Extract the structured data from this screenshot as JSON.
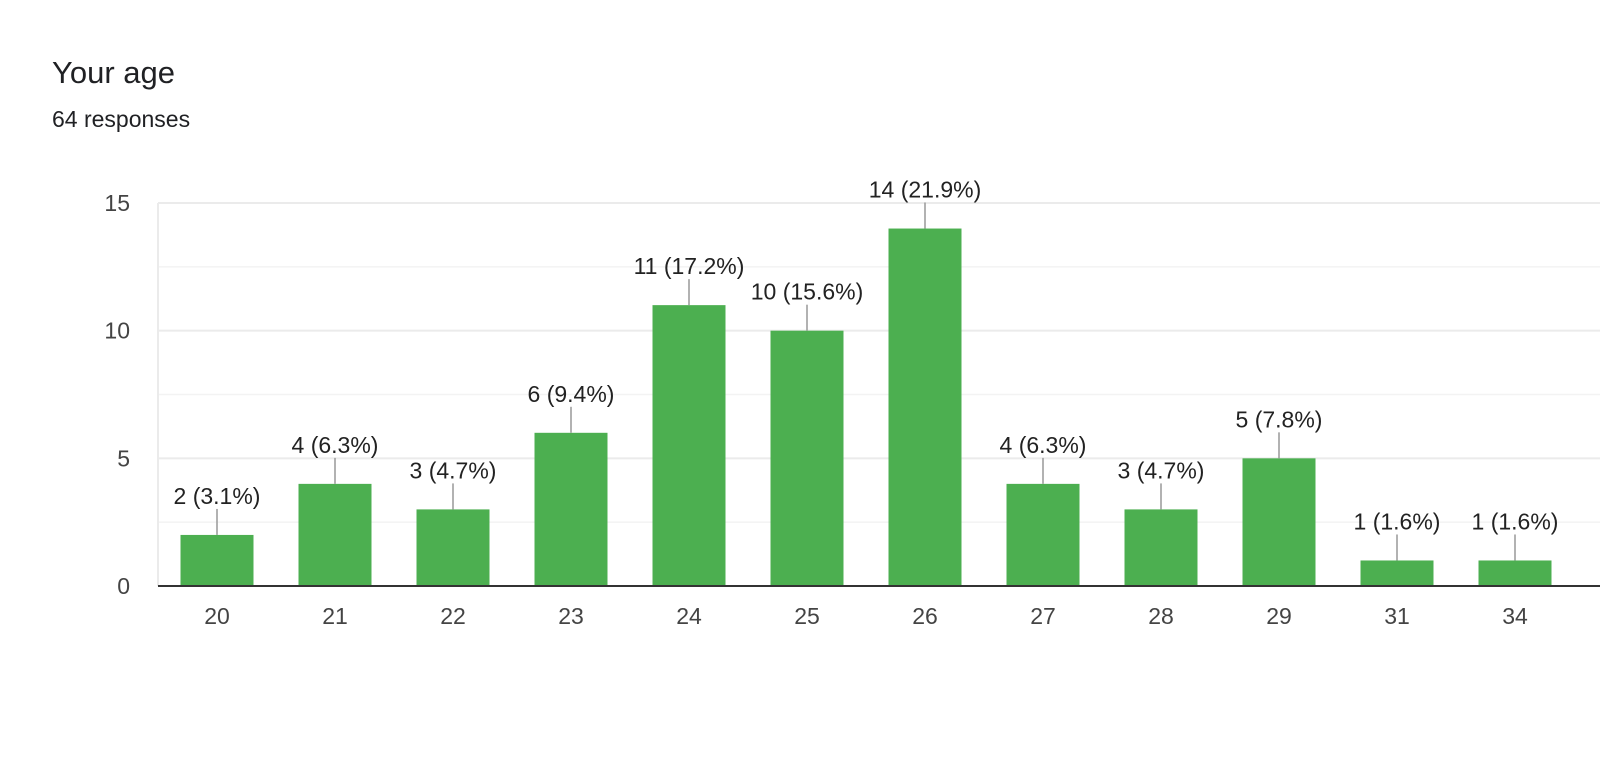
{
  "header": {
    "title": "Your age",
    "subtitle": "64 responses"
  },
  "colors": {
    "bar": "#4caf50",
    "grid": "#ebebeb",
    "axis": "#333333",
    "leader": "#999999"
  },
  "chart_data": {
    "type": "bar",
    "categories": [
      "20",
      "21",
      "22",
      "23",
      "24",
      "25",
      "26",
      "27",
      "28",
      "29",
      "31",
      "34"
    ],
    "values": [
      2,
      4,
      3,
      6,
      11,
      10,
      14,
      4,
      3,
      5,
      1,
      1
    ],
    "data_labels": [
      "2 (3.1%)",
      "4 (6.3%)",
      "3 (4.7%)",
      "6 (9.4%)",
      "11 (17.2%)",
      "10 (15.6%)",
      "14 (21.9%)",
      "4 (6.3%)",
      "3 (4.7%)",
      "5 (7.8%)",
      "1 (1.6%)",
      "1 (1.6%)"
    ],
    "yticks": [
      "0",
      "5",
      "10",
      "15"
    ],
    "ylim": [
      0,
      15
    ],
    "grid": true,
    "legend": "none"
  }
}
